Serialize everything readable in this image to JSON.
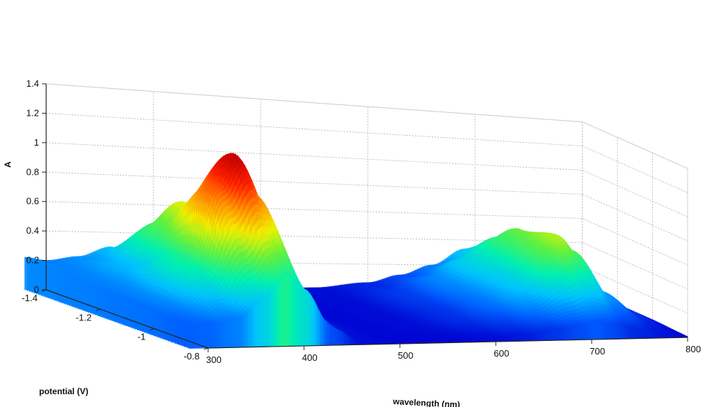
{
  "chart_data": {
    "type": "surface",
    "title": "",
    "xlabel": "wavelength (nm)",
    "ylabel": "potential (V)",
    "zlabel": "A",
    "x_ticks": [
      "300",
      "400",
      "500",
      "600",
      "700",
      "800"
    ],
    "y_ticks": [
      "-1.4",
      "-1.2",
      "-1",
      "-0.8"
    ],
    "z_ticks": [
      "0",
      "0.2",
      "0.4",
      "0.6",
      "0.8",
      "1",
      "1.2",
      "1.4"
    ],
    "xlim": [
      300,
      800
    ],
    "ylim": [
      -1.4,
      -0.8
    ],
    "zlim": [
      0,
      1.4
    ],
    "grid": true,
    "colormap": "jet",
    "colormap_stops": [
      "#0000d0",
      "#0060ff",
      "#00c0ff",
      "#00f0b0",
      "#60f040",
      "#f0f000",
      "#ff9000",
      "#ff2000",
      "#c00000"
    ],
    "series": [
      {
        "potential": -1.4,
        "wavelength": [
          280,
          300,
          330,
          360,
          380,
          400,
          430,
          460,
          500,
          550,
          600,
          630,
          660,
          690,
          705,
          720,
          750,
          780,
          800
        ],
        "absorbance": [
          0.22,
          0.2,
          0.23,
          0.3,
          0.25,
          0.12,
          0.02,
          0.01,
          0.01,
          0.02,
          0.06,
          0.12,
          0.2,
          0.33,
          0.36,
          0.3,
          0.12,
          0.05,
          0.02
        ]
      },
      {
        "potential": -1.2,
        "wavelength": [
          280,
          300,
          330,
          360,
          380,
          400,
          430,
          460,
          500,
          550,
          600,
          630,
          660,
          690,
          705,
          720,
          750,
          780,
          800
        ],
        "absorbance": [
          0.2,
          0.21,
          0.3,
          0.6,
          0.75,
          0.6,
          0.2,
          0.03,
          0.01,
          0.02,
          0.1,
          0.22,
          0.38,
          0.55,
          0.62,
          0.5,
          0.2,
          0.07,
          0.02
        ]
      },
      {
        "potential": -1.0,
        "wavelength": [
          280,
          300,
          330,
          360,
          380,
          400,
          430,
          460,
          500,
          550,
          600,
          630,
          660,
          690,
          705,
          720,
          750,
          780,
          800
        ],
        "absorbance": [
          0.18,
          0.22,
          0.5,
          1.0,
          1.22,
          0.95,
          0.3,
          0.04,
          0.01,
          0.02,
          0.08,
          0.18,
          0.35,
          0.6,
          0.7,
          0.58,
          0.25,
          0.08,
          0.02
        ]
      },
      {
        "potential": -0.8,
        "wavelength": [
          280,
          300,
          330,
          360,
          380,
          400,
          430,
          460,
          500,
          550,
          600,
          630,
          660,
          690,
          705,
          720,
          750,
          780,
          800
        ],
        "absorbance": [
          0.15,
          0.16,
          0.2,
          0.35,
          0.5,
          0.4,
          0.12,
          0.02,
          0.01,
          0.01,
          0.02,
          0.04,
          0.08,
          0.12,
          0.14,
          0.12,
          0.06,
          0.03,
          0.01
        ]
      }
    ]
  }
}
